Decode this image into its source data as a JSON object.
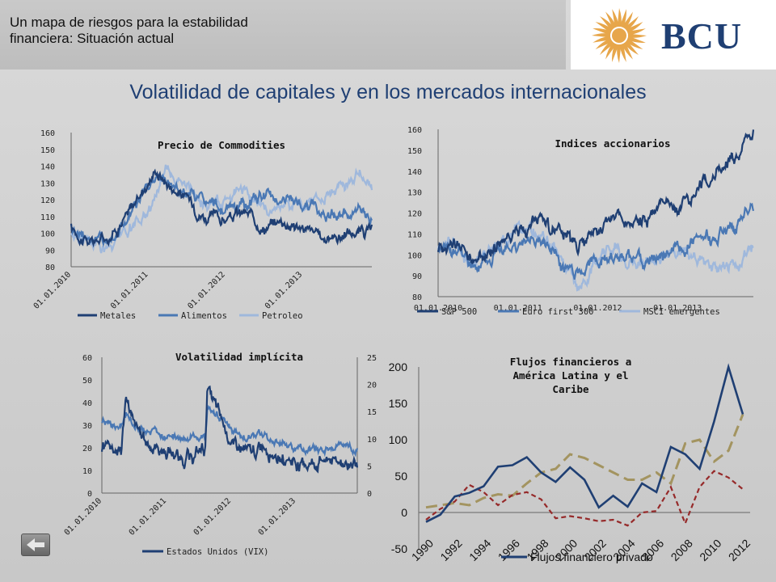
{
  "header": {
    "subtitle_line1": "Un mapa de riesgos para la estabilidad",
    "subtitle_line2": "financiera: Situación actual",
    "logo_text": "BCU",
    "main_title": "Volatilidad de capitales y en los mercados internacionales"
  },
  "colors": {
    "dark_blue": "#1f3f73",
    "mid_blue": "#4a78b4",
    "light_blue": "#9fb8dc",
    "olive": "#a39460",
    "dark_red": "#962a2a",
    "sun": "#e7a64a"
  },
  "chart_data": [
    {
      "id": "commodities",
      "type": "line",
      "title": "Precio de Commodities",
      "ylim": [
        80,
        160
      ],
      "yticks": [
        "160",
        "150",
        "140",
        "130",
        "120",
        "110",
        "100",
        "90",
        "80"
      ],
      "xticks": [
        "01.01.2010",
        "01.01.2011",
        "01.01.2012",
        "01.01.2013"
      ],
      "legend": [
        "Metales",
        "Alimentos",
        "Petroleo"
      ],
      "series": [
        {
          "name": "Metales",
          "x": [
            2010.0,
            2010.25,
            2010.5,
            2010.75,
            2011.0,
            2011.1,
            2011.25,
            2011.5,
            2011.75,
            2012.0,
            2012.25,
            2012.5,
            2012.75,
            2013.0,
            2013.25,
            2013.5,
            2013.75,
            2013.9
          ],
          "values": [
            103,
            94,
            99,
            112,
            131,
            138,
            130,
            121,
            110,
            108,
            112,
            104,
            108,
            103,
            97,
            99,
            101,
            101
          ]
        },
        {
          "name": "Alimentos",
          "x": [
            2010.0,
            2010.25,
            2010.5,
            2010.75,
            2011.0,
            2011.1,
            2011.25,
            2011.5,
            2011.75,
            2012.0,
            2012.25,
            2012.5,
            2012.75,
            2013.0,
            2013.25,
            2013.5,
            2013.75,
            2013.9
          ],
          "values": [
            103,
            98,
            96,
            110,
            126,
            134,
            130,
            125,
            118,
            113,
            116,
            122,
            121,
            117,
            113,
            112,
            111,
            109
          ]
        },
        {
          "name": "Petroleo",
          "x": [
            2010.0,
            2010.25,
            2010.5,
            2010.75,
            2011.0,
            2011.1,
            2011.25,
            2011.5,
            2011.75,
            2012.0,
            2012.25,
            2012.5,
            2012.75,
            2013.0,
            2013.25,
            2013.5,
            2013.75,
            2013.9
          ],
          "values": [
            100,
            95,
            90,
            100,
            112,
            125,
            140,
            128,
            115,
            122,
            128,
            112,
            118,
            116,
            123,
            128,
            137,
            123
          ]
        }
      ]
    },
    {
      "id": "indices",
      "type": "line",
      "title": "Indices accionarios",
      "ylim": [
        80,
        160
      ],
      "yticks": [
        "160",
        "150",
        "140",
        "130",
        "120",
        "110",
        "100",
        "90",
        "80"
      ],
      "xticks": [
        "01.01.2010",
        "01.01.2011",
        "01.01.2012",
        "01.01.2013"
      ],
      "legend": [
        "S&P 500",
        "Euro first 300",
        "MSCI emergentes"
      ],
      "series": [
        {
          "name": "S&P 500",
          "x": [
            2010.0,
            2010.2,
            2010.45,
            2010.7,
            2011.0,
            2011.3,
            2011.6,
            2011.75,
            2012.0,
            2012.25,
            2012.5,
            2012.75,
            2013.0,
            2013.25,
            2013.5,
            2013.75,
            2013.95
          ],
          "values": [
            103,
            107,
            96,
            103,
            112,
            117,
            106,
            103,
            112,
            118,
            114,
            121,
            123,
            133,
            140,
            147,
            158
          ]
        },
        {
          "name": "Euro first 300",
          "x": [
            2010.0,
            2010.2,
            2010.45,
            2010.7,
            2011.0,
            2011.3,
            2011.6,
            2011.75,
            2012.0,
            2012.25,
            2012.5,
            2012.75,
            2013.0,
            2013.25,
            2013.5,
            2013.75,
            2013.95
          ],
          "values": [
            102,
            100,
            95,
            99,
            104,
            106,
            95,
            90,
            96,
            99,
            95,
            101,
            105,
            107,
            108,
            116,
            122
          ]
        },
        {
          "name": "MSCI emergentes",
          "x": [
            2010.0,
            2010.2,
            2010.45,
            2010.7,
            2011.0,
            2011.3,
            2011.6,
            2011.75,
            2012.0,
            2012.25,
            2012.5,
            2012.75,
            2013.0,
            2013.25,
            2013.5,
            2013.75,
            2013.95
          ],
          "values": [
            102,
            106,
            95,
            103,
            112,
            109,
            99,
            86,
            98,
            103,
            95,
            100,
            102,
            98,
            91,
            96,
            104
          ]
        }
      ]
    },
    {
      "id": "volatility",
      "type": "line",
      "title": "Volatilidad implícita",
      "ylim": [
        0,
        60
      ],
      "y2lim": [
        0,
        25
      ],
      "yticks": [
        "60",
        "50",
        "40",
        "30",
        "20",
        "10",
        "0"
      ],
      "y2ticks": [
        "25",
        "20",
        "15",
        "10",
        "5",
        "0"
      ],
      "xticks": [
        "01.01.2010",
        "01.01.2011",
        "01.01.2012",
        "01.01.2013"
      ],
      "legend": [
        "Estados Unidos (VIX)"
      ],
      "series": [
        {
          "name": "Estados Unidos (VIX)",
          "x": [
            2010.0,
            2010.1,
            2010.3,
            2010.38,
            2010.5,
            2010.7,
            2010.9,
            2011.1,
            2011.4,
            2011.6,
            2011.63,
            2011.8,
            2012.0,
            2012.3,
            2012.5,
            2012.8,
            2013.0,
            2013.3,
            2013.5,
            2013.8,
            2013.95
          ],
          "values": [
            20,
            22,
            18,
            44,
            28,
            22,
            19,
            17,
            16,
            20,
            47,
            34,
            23,
            16,
            22,
            15,
            14,
            13,
            16,
            14,
            14
          ]
        },
        {
          "name": "",
          "x": [
            2010.0,
            2010.1,
            2010.3,
            2010.38,
            2010.5,
            2010.7,
            2010.9,
            2011.1,
            2011.4,
            2011.6,
            2011.63,
            2011.8,
            2012.0,
            2012.3,
            2012.5,
            2012.8,
            2013.0,
            2013.3,
            2013.5,
            2013.8,
            2013.95
          ],
          "values2": [
            12.5,
            13,
            12,
            14,
            12,
            11,
            10.5,
            10,
            10,
            11,
            16,
            14,
            12,
            10,
            11,
            9,
            8,
            8,
            8.5,
            9,
            8
          ]
        }
      ]
    },
    {
      "id": "flows",
      "type": "line",
      "title_lines": [
        "Flujos financieros a",
        "América Latina y el",
        "Caribe"
      ],
      "ylim": [
        -50,
        200
      ],
      "yticks": [
        "200",
        "150",
        "100",
        "50",
        "0",
        "-50"
      ],
      "xticks": [
        "1990",
        "1992",
        "1994",
        "1996",
        "1998",
        "2000",
        "2002",
        "2004",
        "2006",
        "2008",
        "2010",
        "2012"
      ],
      "legend": [
        "Flujos financiero privado"
      ],
      "x": [
        1990,
        1991,
        1992,
        1993,
        1994,
        1995,
        1996,
        1997,
        1998,
        1999,
        2000,
        2001,
        2002,
        2003,
        2004,
        2005,
        2006,
        2007,
        2008,
        2009,
        2010,
        2011,
        2012
      ],
      "series": [
        {
          "name": "Flujos financiero privado",
          "values": [
            -13,
            -3,
            22,
            27,
            36,
            63,
            65,
            76,
            55,
            42,
            62,
            45,
            7,
            23,
            8,
            40,
            28,
            90,
            80,
            60,
            125,
            200,
            135
          ]
        },
        {
          "name": "",
          "values": [
            7,
            10,
            13,
            10,
            20,
            25,
            23,
            40,
            55,
            60,
            80,
            75,
            65,
            55,
            45,
            45,
            55,
            40,
            95,
            100,
            70,
            85,
            135
          ]
        },
        {
          "name": "",
          "values": [
            -10,
            5,
            15,
            38,
            28,
            10,
            24,
            28,
            18,
            -8,
            -5,
            -8,
            -12,
            -10,
            -18,
            0,
            2,
            35,
            -15,
            35,
            57,
            48,
            32
          ]
        }
      ]
    }
  ]
}
